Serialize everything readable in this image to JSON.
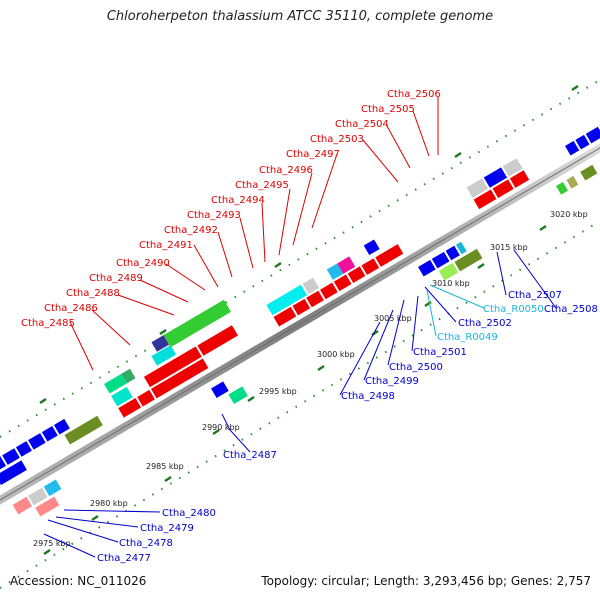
{
  "title": "Chloroherpeton thalassium ATCC 35110, complete genome",
  "footer": {
    "accession": "Accession: NC_011026",
    "stats": "Topology: circular; Length: 3,293,456 bp; Genes: 2,757"
  },
  "colors": {
    "red_label": "#dd0000",
    "blue_label": "#0000cc",
    "cyan_label": "#1ab4dd",
    "backbone": "#888888",
    "tick": "#2e8b2e"
  },
  "scale_labels": [
    "2975 kbp",
    "2980 kbp",
    "2985 kbp",
    "2990 kbp",
    "2995 kbp",
    "3000 kbp",
    "3005 kbp",
    "3010 kbp",
    "3015 kbp",
    "3020 kbp"
  ],
  "gene_labels_top": [
    "Ctha_2485",
    "Ctha_2486",
    "Ctha_2488",
    "Ctha_2489",
    "Ctha_2490",
    "Ctha_2491",
    "Ctha_2492",
    "Ctha_2493",
    "Ctha_2494",
    "Ctha_2495",
    "Ctha_2496",
    "Ctha_2497",
    "Ctha_2503",
    "Ctha_2504",
    "Ctha_2505",
    "Ctha_2506"
  ],
  "gene_labels_bottom": [
    "Ctha_2487",
    "Ctha_2498",
    "Ctha_2499",
    "Ctha_2500",
    "Ctha_2501",
    "Ctha_R0049",
    "Ctha_2502",
    "Ctha_R0050",
    "Ctha_2507",
    "Ctha_2508"
  ],
  "gene_labels_left": [
    "Ctha_2477",
    "Ctha_2478",
    "Ctha_2479",
    "Ctha_2480"
  ]
}
